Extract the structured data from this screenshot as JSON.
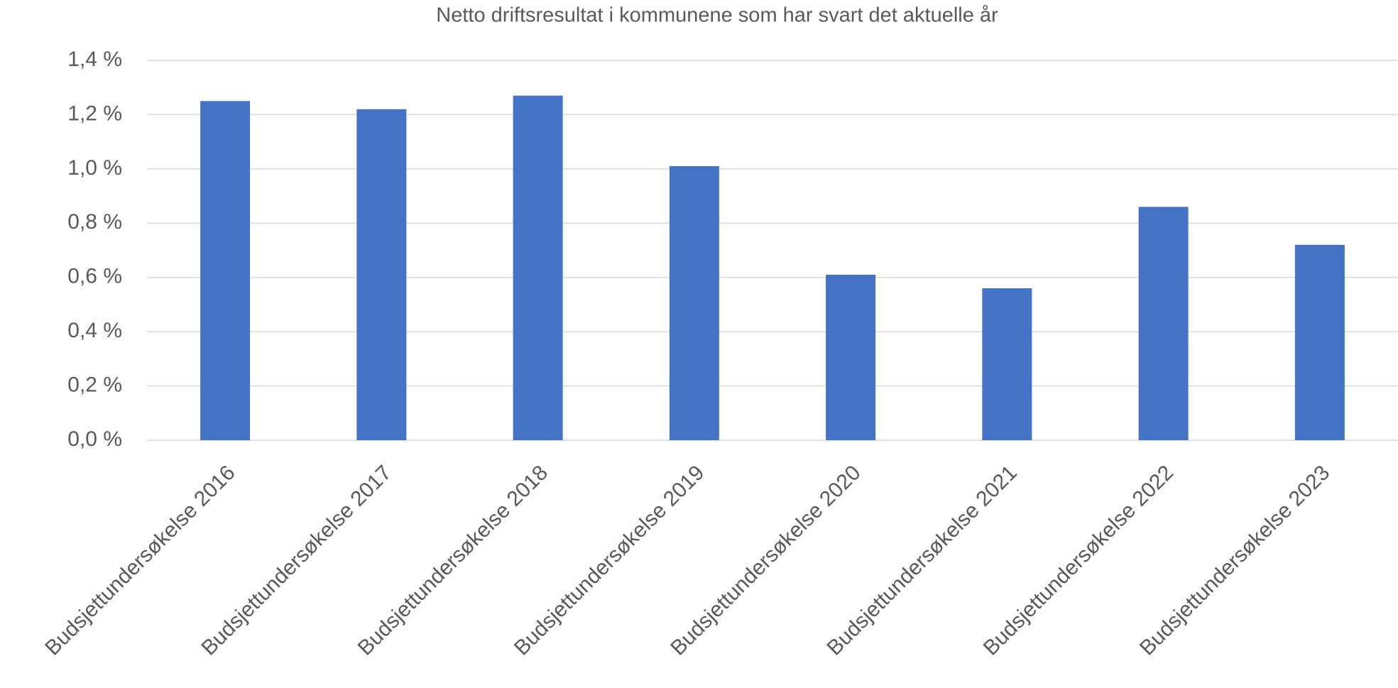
{
  "chart_data": {
    "type": "bar",
    "title": "Netto driftsresultat i kommunene som har svart det aktuelle år",
    "categories": [
      "Budsjettundersøkelse 2016",
      "Budsjettundersøkelse 2017",
      "Budsjettundersøkelse 2018",
      "Budsjettundersøkelse 2019",
      "Budsjettundersøkelse 2020",
      "Budsjettundersøkelse 2021",
      "Budsjettundersøkelse 2022",
      "Budsjettundersøkelse 2023"
    ],
    "values": [
      1.25,
      1.22,
      1.27,
      1.01,
      0.61,
      0.56,
      0.86,
      0.72
    ],
    "color": "#4472c4",
    "ylim": [
      0,
      1.4
    ],
    "yticks": [
      {
        "value": 0,
        "label": "0,0 %"
      },
      {
        "value": 0.2,
        "label": "0,2 %"
      },
      {
        "value": 0.4,
        "label": "0,4 %"
      },
      {
        "value": 0.6,
        "label": "0,6 %"
      },
      {
        "value": 0.8,
        "label": "0,8 %"
      },
      {
        "value": 1.0,
        "label": "1,0 %"
      },
      {
        "value": 1.2,
        "label": "1,2 %"
      },
      {
        "value": 1.4,
        "label": "1,4 %"
      }
    ],
    "grid": true
  }
}
